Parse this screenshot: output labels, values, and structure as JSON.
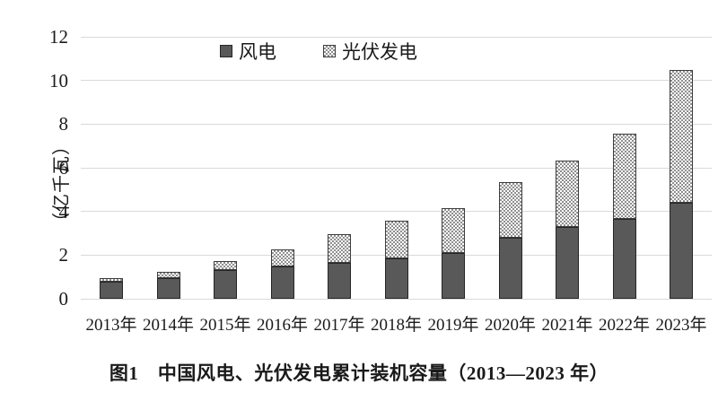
{
  "figure": {
    "caption": "图1　中国风电、光伏发电累计装机容量（2013—2023 年）"
  },
  "chart_data": {
    "type": "bar",
    "stacked": true,
    "title": "图1　中国风电、光伏发电累计装机容量（2013—2023 年）",
    "xlabel": "",
    "ylabel": "（亿千瓦）",
    "ylim": [
      0,
      12
    ],
    "yticks": [
      0,
      2,
      4,
      6,
      8,
      10,
      12
    ],
    "grid": true,
    "legend_position": "top-center",
    "categories": [
      "2013年",
      "2014年",
      "2015年",
      "2016年",
      "2017年",
      "2018年",
      "2019年",
      "2020年",
      "2021年",
      "2022年",
      "2023年"
    ],
    "series": [
      {
        "name": "风电",
        "pattern": "solid",
        "color": "#595959",
        "border_color": "#262626",
        "values": [
          0.77,
          0.96,
          1.31,
          1.49,
          1.64,
          1.84,
          2.1,
          2.81,
          3.28,
          3.65,
          4.41
        ]
      },
      {
        "name": "光伏发电",
        "pattern": "dotted-checker",
        "color": "#8f8f8f",
        "background": "#ffffff",
        "border_color": "#3d3d3d",
        "values": [
          0.19,
          0.28,
          0.43,
          0.77,
          1.3,
          1.74,
          2.04,
          2.53,
          3.06,
          3.93,
          6.09
        ]
      }
    ],
    "gridline_color": "#d9d9d9",
    "text_color": "#1a1a1a"
  }
}
